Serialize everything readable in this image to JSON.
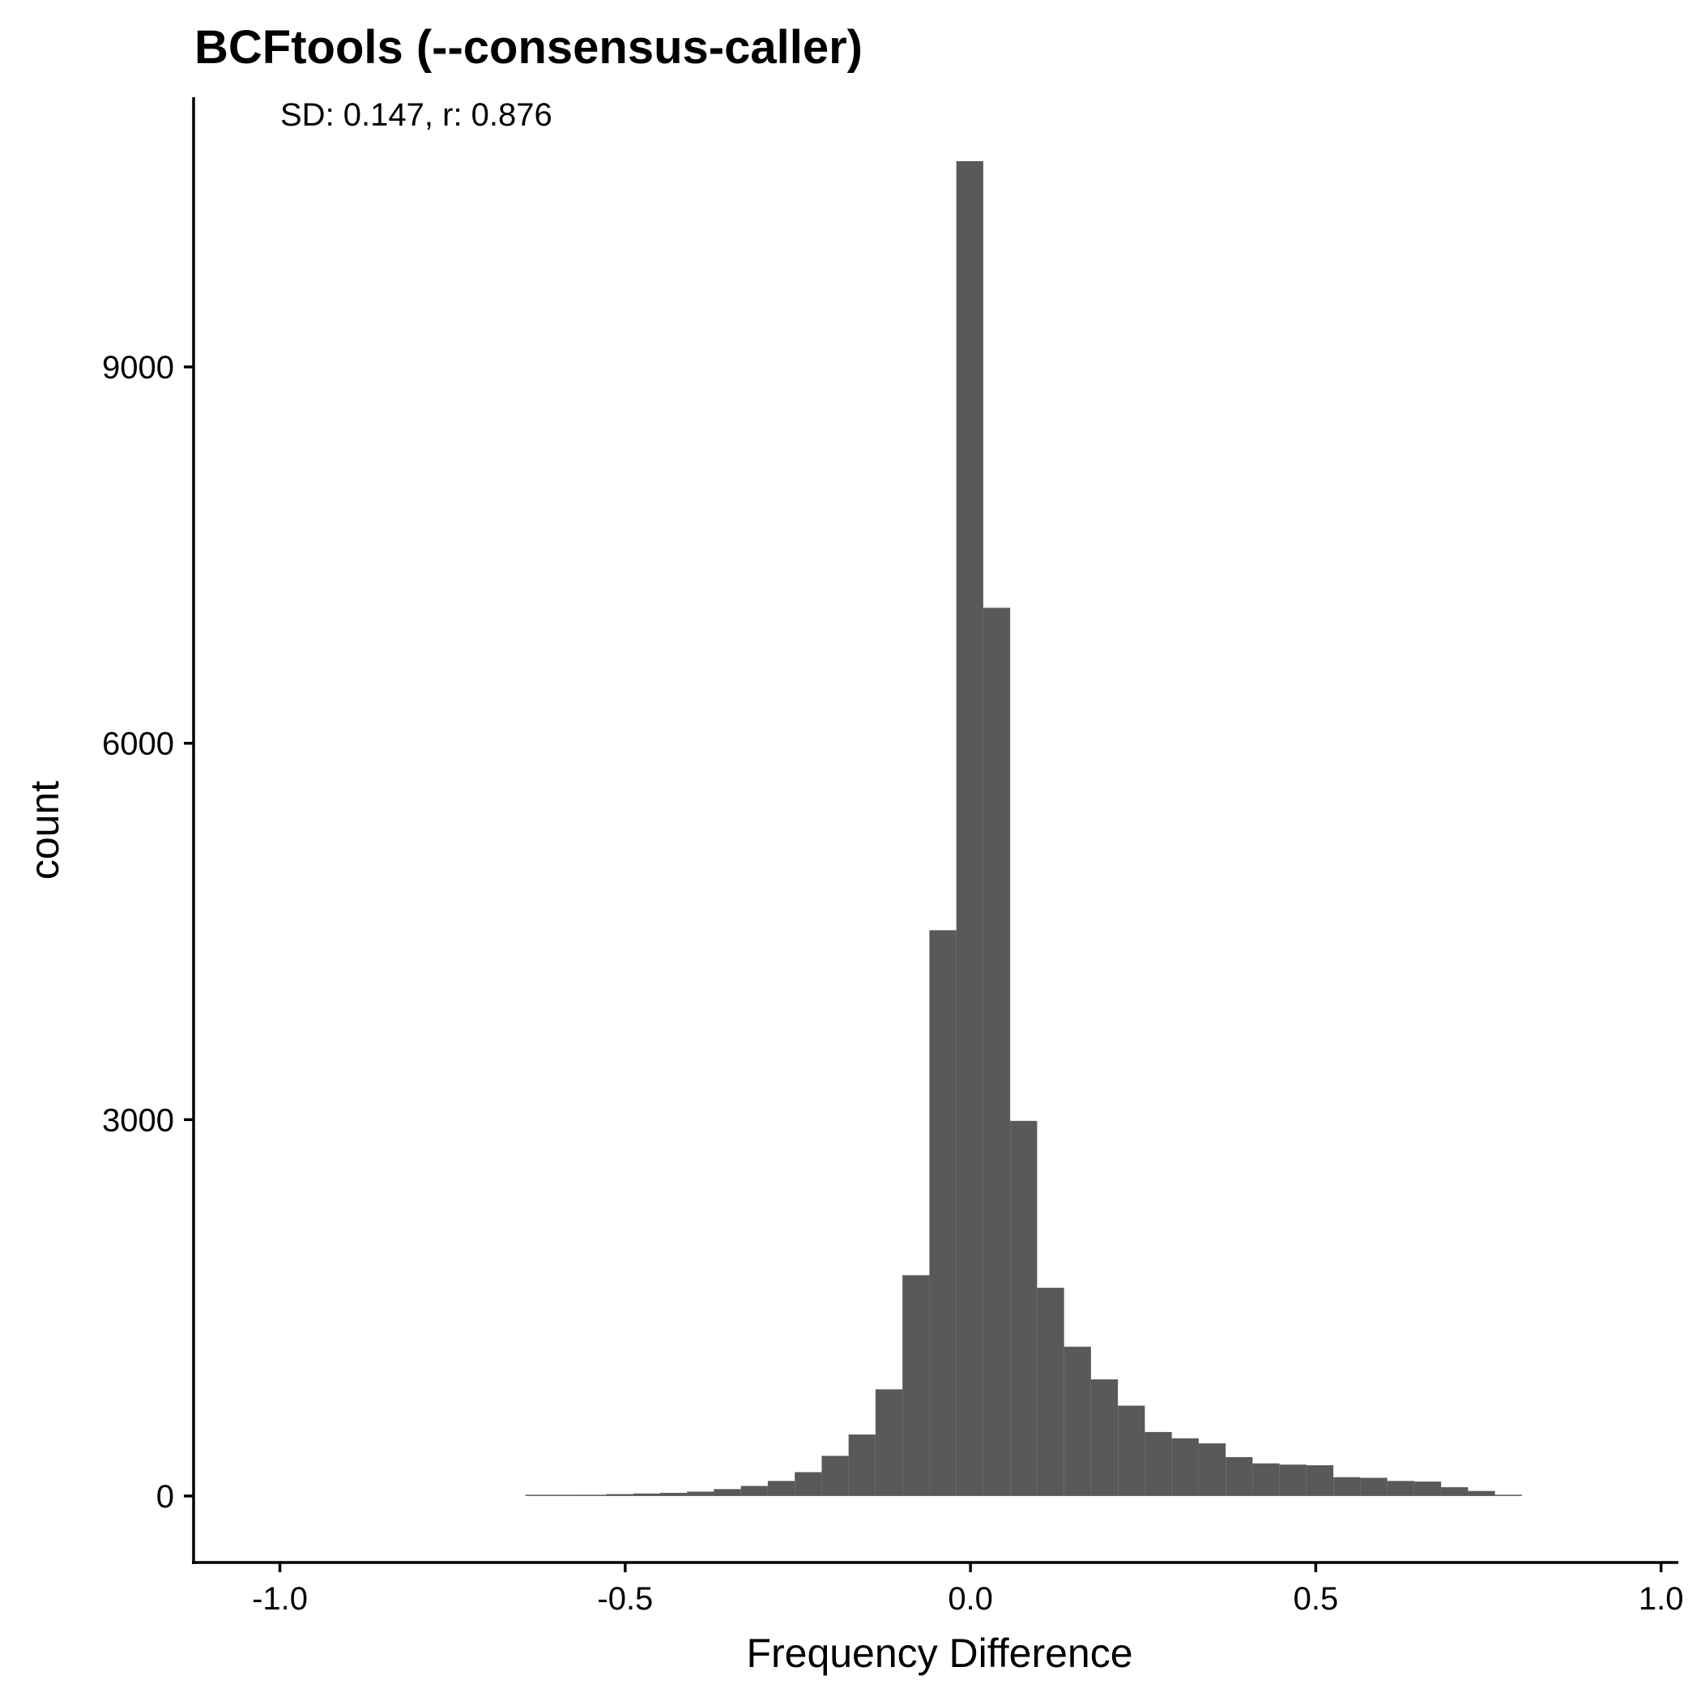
{
  "chart_data": {
    "type": "bar",
    "title": "BCFtools (--consensus-caller)",
    "annotation": "SD: 0.147, r: 0.876",
    "xlabel": "Frequency Difference",
    "ylabel": "count",
    "xlim": [
      -1.125,
      1.025
    ],
    "ylim": [
      -530,
      11150
    ],
    "x_ticks": [
      -1.0,
      -0.5,
      0.0,
      0.5,
      1.0
    ],
    "x_tick_labels": [
      "-1.0",
      "-0.5",
      "0.0",
      "0.5",
      "1.0"
    ],
    "y_ticks": [
      0,
      3000,
      6000,
      9000
    ],
    "y_tick_labels": [
      "0",
      "3000",
      "6000",
      "9000"
    ],
    "bin_width": 0.039,
    "bins": [
      {
        "x": -0.625,
        "y": 5
      },
      {
        "x": -0.586,
        "y": 0
      },
      {
        "x": -0.547,
        "y": 10
      },
      {
        "x": -0.508,
        "y": 15
      },
      {
        "x": -0.469,
        "y": 20
      },
      {
        "x": -0.43,
        "y": 25
      },
      {
        "x": -0.391,
        "y": 35
      },
      {
        "x": -0.352,
        "y": 55
      },
      {
        "x": -0.313,
        "y": 80
      },
      {
        "x": -0.274,
        "y": 120
      },
      {
        "x": -0.235,
        "y": 190
      },
      {
        "x": -0.196,
        "y": 320
      },
      {
        "x": -0.157,
        "y": 490
      },
      {
        "x": -0.118,
        "y": 850
      },
      {
        "x": -0.079,
        "y": 1760
      },
      {
        "x": -0.04,
        "y": 4510
      },
      {
        "x": -0.001,
        "y": 10640
      },
      {
        "x": 0.038,
        "y": 7080
      },
      {
        "x": 0.077,
        "y": 2990
      },
      {
        "x": 0.116,
        "y": 1660
      },
      {
        "x": 0.155,
        "y": 1190
      },
      {
        "x": 0.194,
        "y": 930
      },
      {
        "x": 0.233,
        "y": 720
      },
      {
        "x": 0.272,
        "y": 510
      },
      {
        "x": 0.311,
        "y": 460
      },
      {
        "x": 0.35,
        "y": 420
      },
      {
        "x": 0.389,
        "y": 310
      },
      {
        "x": 0.428,
        "y": 260
      },
      {
        "x": 0.467,
        "y": 250
      },
      {
        "x": 0.506,
        "y": 245
      },
      {
        "x": 0.545,
        "y": 150
      },
      {
        "x": 0.584,
        "y": 145
      },
      {
        "x": 0.623,
        "y": 120
      },
      {
        "x": 0.662,
        "y": 115
      },
      {
        "x": 0.701,
        "y": 70
      },
      {
        "x": 0.74,
        "y": 40
      },
      {
        "x": 0.779,
        "y": 10
      }
    ],
    "bar_color": "#595959",
    "grid": false,
    "legend": "none"
  }
}
